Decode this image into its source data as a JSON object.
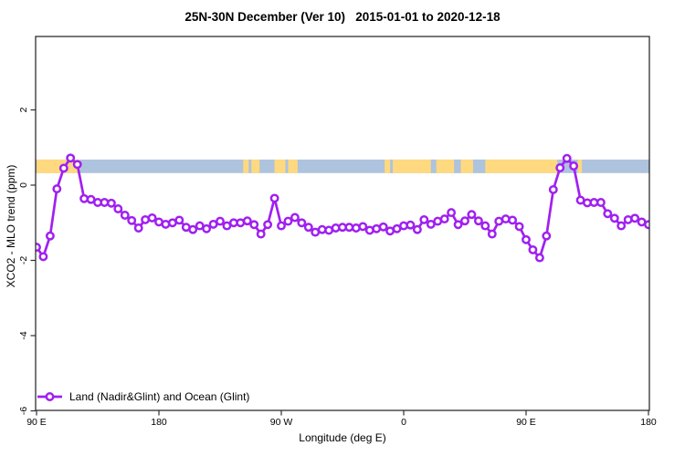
{
  "title": "25N-30N December (Ver 10)   2015-01-01 to 2020-12-18",
  "axes": {
    "x_label": "Longitude (deg E)",
    "y_label": "XCO2 - MLO trend (ppm)",
    "x_ticks": [
      {
        "lon": 90,
        "label": "90 E"
      },
      {
        "lon": 180,
        "label": "180"
      },
      {
        "lon": 270,
        "label": "90 W"
      },
      {
        "lon": 360,
        "label": "0"
      },
      {
        "lon": 450,
        "label": "90 E"
      },
      {
        "lon": 540,
        "label": "180"
      }
    ],
    "y_ticks": [
      {
        "value": 2,
        "label": "2"
      },
      {
        "value": 0,
        "label": "0"
      },
      {
        "value": -2,
        "label": "-2"
      },
      {
        "value": -4,
        "label": "-4"
      },
      {
        "value": -6,
        "label": "-6"
      }
    ]
  },
  "legend": {
    "label": "Land (Nadir&Glint) and Ocean (Glint)"
  },
  "colors": {
    "series_purple": "#A020F0",
    "land_band": "#FFD97F",
    "ocean_band": "#AEC3DD",
    "axis": "#2e2e2e",
    "text": "#000000"
  },
  "chart_data": {
    "type": "line",
    "title": "25N-30N December (Ver 10)   2015-01-01 to 2020-12-18",
    "xlabel": "Longitude (deg E)",
    "ylabel": "XCO2 - MLO trend (ppm)",
    "x_range_deg_east": [
      90,
      540
    ],
    "ylim": [
      -6,
      4
    ],
    "grid": false,
    "legend_position": "bottom-left",
    "marker": "open-circle",
    "series": [
      {
        "name": "Land (Nadir&Glint) and Ocean (Glint)",
        "points": [
          [
            90,
            -1.65
          ],
          [
            95,
            -1.9
          ],
          [
            100,
            -1.35
          ],
          [
            105,
            -0.1
          ],
          [
            110,
            0.45
          ],
          [
            115,
            0.72
          ],
          [
            120,
            0.55
          ],
          [
            125,
            -0.36
          ],
          [
            130,
            -0.38
          ],
          [
            135,
            -0.46
          ],
          [
            140,
            -0.46
          ],
          [
            145,
            -0.48
          ],
          [
            150,
            -0.63
          ],
          [
            155,
            -0.8
          ],
          [
            160,
            -0.94
          ],
          [
            165,
            -1.14
          ],
          [
            170,
            -0.92
          ],
          [
            175,
            -0.87
          ],
          [
            180,
            -0.98
          ],
          [
            185,
            -1.04
          ],
          [
            190,
            -1.0
          ],
          [
            195,
            -0.93
          ],
          [
            200,
            -1.12
          ],
          [
            205,
            -1.18
          ],
          [
            210,
            -1.08
          ],
          [
            215,
            -1.16
          ],
          [
            220,
            -1.04
          ],
          [
            225,
            -0.96
          ],
          [
            230,
            -1.08
          ],
          [
            235,
            -1.0
          ],
          [
            240,
            -1.0
          ],
          [
            245,
            -0.95
          ],
          [
            250,
            -1.05
          ],
          [
            255,
            -1.3
          ],
          [
            260,
            -1.05
          ],
          [
            265,
            -0.35
          ],
          [
            270,
            -1.08
          ],
          [
            275,
            -0.96
          ],
          [
            280,
            -0.86
          ],
          [
            285,
            -1.0
          ],
          [
            290,
            -1.12
          ],
          [
            295,
            -1.25
          ],
          [
            300,
            -1.18
          ],
          [
            305,
            -1.2
          ],
          [
            310,
            -1.14
          ],
          [
            315,
            -1.12
          ],
          [
            320,
            -1.12
          ],
          [
            325,
            -1.14
          ],
          [
            330,
            -1.1
          ],
          [
            335,
            -1.2
          ],
          [
            340,
            -1.16
          ],
          [
            345,
            -1.11
          ],
          [
            350,
            -1.22
          ],
          [
            355,
            -1.16
          ],
          [
            360,
            -1.08
          ],
          [
            365,
            -1.06
          ],
          [
            370,
            -1.18
          ],
          [
            375,
            -0.92
          ],
          [
            380,
            -1.04
          ],
          [
            385,
            -0.96
          ],
          [
            390,
            -0.9
          ],
          [
            395,
            -0.73
          ],
          [
            400,
            -1.05
          ],
          [
            405,
            -0.95
          ],
          [
            410,
            -0.78
          ],
          [
            415,
            -0.95
          ],
          [
            420,
            -1.08
          ],
          [
            425,
            -1.3
          ],
          [
            430,
            -0.96
          ],
          [
            435,
            -0.9
          ],
          [
            440,
            -0.93
          ],
          [
            445,
            -1.1
          ],
          [
            450,
            -1.45
          ],
          [
            455,
            -1.72
          ],
          [
            460,
            -1.93
          ],
          [
            465,
            -1.35
          ],
          [
            470,
            -0.12
          ],
          [
            475,
            0.46
          ],
          [
            480,
            0.71
          ],
          [
            485,
            0.51
          ],
          [
            490,
            -0.4
          ],
          [
            495,
            -0.47
          ],
          [
            500,
            -0.46
          ],
          [
            505,
            -0.46
          ],
          [
            510,
            -0.76
          ],
          [
            515,
            -0.88
          ],
          [
            520,
            -1.08
          ],
          [
            525,
            -0.92
          ],
          [
            530,
            -0.88
          ],
          [
            535,
            -0.98
          ],
          [
            540,
            -1.05
          ]
        ]
      }
    ],
    "surface_band": {
      "description": "land/ocean strip along 25N-30N",
      "y_top_ppm": 0.68,
      "y_bottom_ppm": 0.32,
      "land_segments_lon": [
        [
          90,
          122
        ],
        [
          242,
          254
        ],
        [
          265,
          282
        ],
        [
          346,
          473
        ],
        [
          488,
          491
        ]
      ],
      "ocean_speckles_lon": [
        [
          246,
          248
        ],
        [
          273,
          275
        ],
        [
          350,
          352
        ],
        [
          380,
          384
        ],
        [
          397,
          402
        ],
        [
          411,
          420
        ]
      ]
    }
  }
}
